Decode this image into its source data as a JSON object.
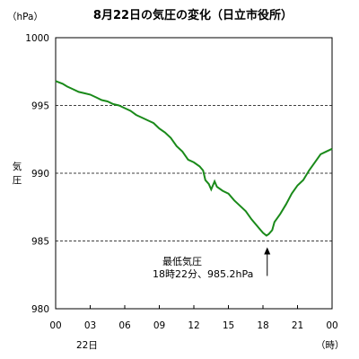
{
  "chart_data": {
    "type": "line",
    "title": "8月22日の気圧の変化（日立市役所）",
    "ylabel": "気圧",
    "yunit": "（hPa）",
    "xunit": "（時）",
    "date_label": "22日",
    "ylim": [
      980,
      1000
    ],
    "xlim": [
      0,
      24
    ],
    "yticks": [
      980,
      985,
      990,
      995,
      1000
    ],
    "xticks": [
      "00",
      "03",
      "06",
      "09",
      "12",
      "15",
      "18",
      "21",
      "00"
    ],
    "grid": "dashed horizontal at 985, 990, 995",
    "line_color": "#1a8a1a",
    "series": [
      {
        "x": [
          0,
          0.3,
          0.6,
          1.0,
          1.5,
          2.0,
          2.5,
          3.0,
          3.5,
          4.0,
          4.5,
          5.0,
          5.5,
          6.0,
          6.5,
          7.0,
          7.5,
          8.0,
          8.5,
          9.0,
          9.5,
          10.0,
          10.5,
          11.0,
          11.5,
          12.0,
          12.5,
          12.8,
          13.0,
          13.3,
          13.5,
          13.8,
          14.0,
          14.5,
          15.0,
          15.5,
          16.0,
          16.5,
          17.0,
          17.5,
          18.0,
          18.3,
          18.5,
          18.8,
          19.0,
          19.5,
          20.0,
          20.5,
          21.0,
          21.5,
          22.0,
          22.5,
          23.0,
          23.5,
          24.0
        ],
        "values": [
          996.8,
          996.7,
          996.6,
          996.4,
          996.2,
          996.0,
          995.9,
          995.8,
          995.6,
          995.4,
          995.3,
          995.1,
          995.0,
          994.8,
          994.6,
          994.3,
          994.1,
          993.9,
          993.7,
          993.3,
          993.0,
          992.6,
          992.0,
          991.6,
          991.0,
          990.8,
          990.5,
          990.2,
          989.5,
          989.2,
          988.8,
          989.4,
          989.0,
          988.7,
          988.5,
          988.0,
          987.6,
          987.2,
          986.6,
          986.1,
          985.6,
          985.4,
          985.5,
          985.8,
          986.4,
          987.0,
          987.7,
          988.5,
          989.1,
          989.5,
          990.2,
          990.8,
          991.4,
          991.6,
          991.8
        ]
      }
    ],
    "annotation": {
      "line1": "最低気圧",
      "line2": "18時22分、985.2hPa",
      "x": 18.37,
      "value": 985.2
    }
  }
}
